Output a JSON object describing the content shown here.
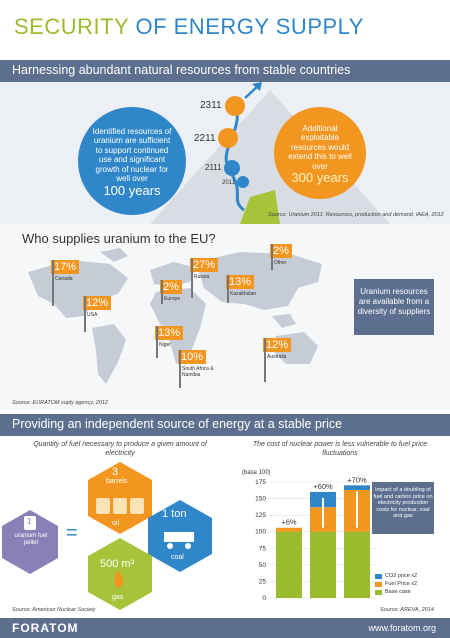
{
  "title": {
    "part1": "SECURITY",
    "part2": "OF ENERGY SUPPLY"
  },
  "section1": {
    "heading": "Harnessing abundant natural resources from stable countries",
    "years": [
      "2311",
      "2211",
      "2111",
      "2011"
    ],
    "blue_text": "Identified resources of uranium are sufficient to support continued use and significant growth of nuclear for well over",
    "blue_big": "100 years",
    "orange_text": "Additional exploitable resources would extend this to well over",
    "orange_big": "300 years",
    "source": "Source: Uranium 2011: Resources, production and demand, IAEA, 2012"
  },
  "section2": {
    "heading": "Who supplies uranium to the EU?",
    "flags": [
      {
        "pct": "17%",
        "label": "Canada"
      },
      {
        "pct": "12%",
        "label": "USA"
      },
      {
        "pct": "2%",
        "label": "Europe"
      },
      {
        "pct": "27%",
        "label": "Russia"
      },
      {
        "pct": "13%",
        "label": "Kazakhstan"
      },
      {
        "pct": "2%",
        "label": "Other"
      },
      {
        "pct": "13%",
        "label": "Niger"
      },
      {
        "pct": "10%",
        "label": "South Africa & Namibia"
      },
      {
        "pct": "12%",
        "label": "Australia"
      }
    ],
    "box_text": "Uranium resources are available from a diversity of suppliers",
    "source": "Source: EURATOM suply agency, 2012"
  },
  "section3": {
    "heading": "Providing an independent source of energy at a stable price",
    "left_subtitle": "Quantity of fuel necessary to produce a given amount of electricity",
    "right_subtitle": "The cost of nuclear power is less vulnerable to fuel price fluctuations",
    "pellet": {
      "num": "1",
      "label": "uranium fuel pellet"
    },
    "equals": "=",
    "oil": {
      "num": "3",
      "unit": "barrels",
      "label": "oil"
    },
    "coal": {
      "num": "1 ton",
      "label": "coal"
    },
    "gas": {
      "num": "500 m³",
      "label": "gas"
    },
    "impact_text": "Impact of a doubling of fuel and carbon price on electricity production costs for nuclear, coal and gas",
    "legend": [
      "CO2 price x2",
      "Fuel Price x2",
      "Base case"
    ],
    "left_source": "Source: American Nuclear Society",
    "right_source": "Source: AREVA, 2014"
  },
  "chart_data": {
    "type": "bar",
    "title": "",
    "ylabel": "(base 100)",
    "ylim": [
      0,
      175
    ],
    "yticks": [
      0,
      25,
      50,
      75,
      100,
      125,
      150,
      175
    ],
    "categories": [
      "Nuclear",
      "Coal",
      "Gas"
    ],
    "series": [
      {
        "name": "Base case",
        "values": [
          100,
          100,
          100
        ]
      },
      {
        "name": "Fuel Price x2",
        "values": [
          6,
          37,
          63
        ]
      },
      {
        "name": "CO2 price x2",
        "values": [
          0,
          23,
          7
        ]
      }
    ],
    "annotations": [
      "+6%",
      "+60%",
      "+70%"
    ],
    "colors": {
      "base": "#9bbb2e",
      "fuel": "#f29620",
      "co2": "#2f86c8"
    }
  },
  "footer": {
    "logo": "FORATOM",
    "url": "www.foratom.org"
  }
}
